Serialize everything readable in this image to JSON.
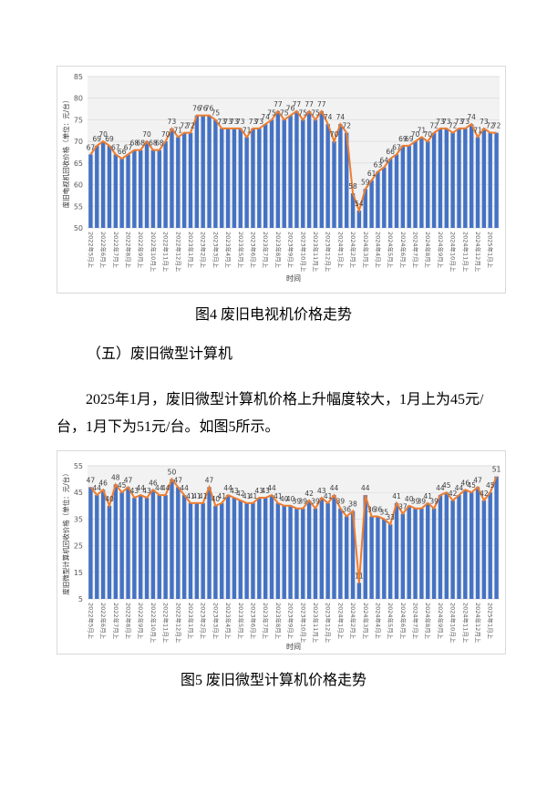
{
  "chart_data": [
    {
      "type": "bar_line",
      "ylabel": "废旧电视机回收价格（单位：元/台）",
      "xlabel": "时间",
      "caption": "图4  废旧电视机价格走势",
      "bar_color": "#4472c4",
      "line_color": "#ed7d31",
      "grid": true,
      "ylim": [
        50,
        85
      ],
      "yticks": [
        50,
        55,
        60,
        65,
        70,
        75,
        80,
        85
      ],
      "categories": [
        "2022年5月上",
        null,
        "2022年6月上",
        null,
        "2022年7月上",
        null,
        "2022年8月上",
        null,
        "2022年9月上",
        null,
        "2022年10月上",
        null,
        "2022年11月上",
        null,
        "2022年12月上",
        null,
        "2023年1月上",
        null,
        "2023年2月上",
        null,
        "2023年3月上",
        null,
        "2023年4月上",
        null,
        "2023年5月上",
        null,
        "2023年6月上",
        null,
        "2023年7月上",
        null,
        "2023年8月上",
        null,
        "2023年9月上",
        null,
        "2023年10月上",
        null,
        "2023年11月上",
        null,
        "2023年12月上",
        null,
        "2024年1月上",
        null,
        "2024年2月上",
        null,
        "2024年3月上",
        null,
        "2024年4月上",
        null,
        "2024年5月上",
        null,
        "2024年6月上",
        null,
        "2024年7月上",
        null,
        "2024年8月上",
        null,
        "2024年9月上",
        null,
        "2024年10月上",
        null,
        "2024年11月上",
        null,
        "2024年12月上",
        null,
        "2025年1月上",
        null
      ],
      "values": [
        67,
        69,
        70,
        69,
        67,
        66,
        67,
        68,
        68,
        70,
        68,
        68,
        70,
        73,
        71,
        72,
        72,
        76,
        76,
        76,
        75,
        73,
        73,
        73,
        73,
        71,
        73,
        73,
        74,
        75,
        77,
        75,
        76,
        77,
        75,
        77,
        75,
        77,
        74,
        70,
        74,
        72,
        58,
        54,
        59,
        61,
        63,
        64,
        66,
        67,
        69,
        69,
        70,
        71,
        70,
        72,
        73,
        73,
        72,
        73,
        73,
        74,
        71,
        73,
        72,
        72
      ]
    },
    {
      "type": "bar_line",
      "ylabel": "废旧微型计算机回收价格（单位：元/台）",
      "xlabel": "时间",
      "caption": "图5  废旧微型计算机价格走势",
      "bar_color": "#4472c4",
      "line_color": "#ed7d31",
      "grid": true,
      "ylim": [
        5,
        55
      ],
      "yticks": [
        5,
        15,
        25,
        35,
        45,
        55
      ],
      "categories": [
        "2022年5月上",
        null,
        "2022年6月上",
        null,
        "2022年7月上",
        null,
        "2022年8月上",
        null,
        "2022年9月上",
        null,
        "2022年10月上",
        null,
        "2022年11月上",
        null,
        "2022年12月上",
        null,
        "2023年1月上",
        null,
        "2023年2月上",
        null,
        "2023年3月上",
        null,
        "2023年4月上",
        null,
        "2023年5月上",
        null,
        "2023年6月上",
        null,
        "2023年7月上",
        null,
        "2023年8月上",
        null,
        "2023年9月上",
        null,
        "2023年10月上",
        null,
        "2023年11月上",
        null,
        "2023年12月上",
        null,
        "2024年1月上",
        null,
        "2024年2月上",
        null,
        "2024年3月上",
        null,
        "2024年4月上",
        null,
        "2024年5月上",
        null,
        "2024年6月上",
        null,
        "2024年7月上",
        null,
        "2024年8月上",
        null,
        "2024年9月上",
        null,
        "2024年10月上",
        null,
        "2024年11月上",
        null,
        "2024年12月上",
        null,
        "2025年1月上",
        null
      ],
      "values": [
        47,
        44,
        46,
        40,
        48,
        45,
        47,
        43,
        44,
        43,
        46,
        44,
        44,
        50,
        47,
        44,
        41,
        41,
        41,
        47,
        40,
        41,
        44,
        43,
        42,
        41,
        41,
        43,
        43,
        44,
        41,
        40,
        40,
        39,
        39,
        42,
        39,
        43,
        41,
        44,
        39,
        36,
        38,
        11,
        44,
        36,
        36,
        35,
        33,
        41,
        37,
        40,
        39,
        39,
        41,
        39,
        44,
        45,
        42,
        44,
        46,
        45,
        47,
        42,
        45,
        51
      ]
    }
  ],
  "document": {
    "section_heading": "（五）废旧微型计算机",
    "paragraph": "2025年1月，废旧微型计算机价格上升幅度较大，1月上为45元/台，1月下为51元/台。如图5所示。"
  }
}
